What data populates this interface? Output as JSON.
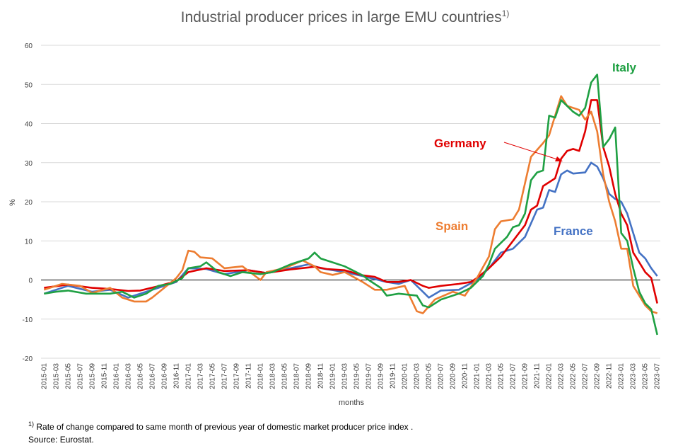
{
  "page": {
    "title_main": "Industrial producer prices in large EMU countries",
    "title_sup": "1)",
    "footnote_marker": "1)",
    "footnote_text": "Rate of change compared to same month of previous year of domestic market producer price index .",
    "source": "Source: Eurostat."
  },
  "chart_data": {
    "type": "line",
    "title": "Industrial producer prices in large EMU countries",
    "xlabel": "months",
    "ylabel": "%",
    "ylim": [
      -20,
      60
    ],
    "yticks": [
      -20,
      -10,
      0,
      10,
      20,
      30,
      40,
      50,
      60
    ],
    "grid": "horizontal",
    "legend": "inline labels",
    "x_start": "2015-01",
    "x_end": "2023-07",
    "xtick_labels": [
      "2015-01",
      "2015-03",
      "2015-05",
      "2015-07",
      "2015-09",
      "2015-11",
      "2016-01",
      "2016-03",
      "2016-05",
      "2016-07",
      "2016-09",
      "2016-11",
      "2017-01",
      "2017-03",
      "2017-05",
      "2017-07",
      "2017-09",
      "2017-11",
      "2018-01",
      "2018-03",
      "2018-05",
      "2018-07",
      "2018-09",
      "2018-11",
      "2019-01",
      "2019-03",
      "2019-05",
      "2019-07",
      "2019-09",
      "2019-11",
      "2020-01",
      "2020-03",
      "2020-05",
      "2020-07",
      "2020-09",
      "2020-11",
      "2021-01",
      "2021-03",
      "2021-05",
      "2021-07",
      "2021-09",
      "2021-11",
      "2022-01",
      "2022-03",
      "2022-05",
      "2022-07",
      "2022-09",
      "2022-11",
      "2023-01",
      "2023-03",
      "2023-05",
      "2023-07"
    ],
    "series": [
      {
        "name": "France",
        "color": "#4472C4",
        "points": [
          [
            "2015-01",
            -3.5
          ],
          [
            "2015-05",
            -1.5
          ],
          [
            "2015-09",
            -3
          ],
          [
            "2015-12",
            -2.5
          ],
          [
            "2016-03",
            -4.5
          ],
          [
            "2016-06",
            -3
          ],
          [
            "2016-08",
            -2
          ],
          [
            "2016-11",
            -0.5
          ],
          [
            "2017-01",
            3
          ],
          [
            "2017-04",
            2.8
          ],
          [
            "2017-07",
            1.5
          ],
          [
            "2017-11",
            2.5
          ],
          [
            "2018-02",
            1.8
          ],
          [
            "2018-06",
            3
          ],
          [
            "2018-09",
            4
          ],
          [
            "2018-11",
            3
          ],
          [
            "2019-03",
            2
          ],
          [
            "2019-06",
            1
          ],
          [
            "2019-10",
            -0.5
          ],
          [
            "2019-12",
            -1
          ],
          [
            "2020-02",
            0
          ],
          [
            "2020-04",
            -3
          ],
          [
            "2020-05",
            -4.5
          ],
          [
            "2020-07",
            -2.7
          ],
          [
            "2020-10",
            -2.5
          ],
          [
            "2021-01",
            0
          ],
          [
            "2021-03",
            3
          ],
          [
            "2021-05",
            7
          ],
          [
            "2021-07",
            8
          ],
          [
            "2021-09",
            11
          ],
          [
            "2021-11",
            18
          ],
          [
            "2021-12",
            18.5
          ],
          [
            "2022-01",
            23
          ],
          [
            "2022-02",
            22.5
          ],
          [
            "2022-03",
            27
          ],
          [
            "2022-04",
            28
          ],
          [
            "2022-05",
            27.2
          ],
          [
            "2022-07",
            27.5
          ],
          [
            "2022-08",
            30
          ],
          [
            "2022-09",
            29
          ],
          [
            "2022-10",
            26
          ],
          [
            "2022-11",
            22
          ],
          [
            "2022-12",
            20.7
          ],
          [
            "2023-01",
            20
          ],
          [
            "2023-02",
            17
          ],
          [
            "2023-03",
            12
          ],
          [
            "2023-04",
            7
          ],
          [
            "2023-05",
            5.5
          ],
          [
            "2023-06",
            3
          ],
          [
            "2023-07",
            1
          ]
        ]
      },
      {
        "name": "Germany",
        "color": "#E00000",
        "points": [
          [
            "2015-01",
            -2
          ],
          [
            "2015-05",
            -1.2
          ],
          [
            "2015-09",
            -2
          ],
          [
            "2015-12",
            -2.3
          ],
          [
            "2016-03",
            -2.8
          ],
          [
            "2016-05",
            -2.7
          ],
          [
            "2016-08",
            -1.6
          ],
          [
            "2016-11",
            -0.3
          ],
          [
            "2017-01",
            2
          ],
          [
            "2017-04",
            3
          ],
          [
            "2017-07",
            2.3
          ],
          [
            "2017-11",
            2.5
          ],
          [
            "2018-02",
            1.8
          ],
          [
            "2018-06",
            2.7
          ],
          [
            "2018-09",
            3.2
          ],
          [
            "2018-10",
            3.4
          ],
          [
            "2018-12",
            2.8
          ],
          [
            "2019-03",
            2.5
          ],
          [
            "2019-06",
            1.2
          ],
          [
            "2019-08",
            0.8
          ],
          [
            "2019-10",
            -0.5
          ],
          [
            "2019-12",
            -0.5
          ],
          [
            "2020-02",
            0
          ],
          [
            "2020-04",
            -1.5
          ],
          [
            "2020-05",
            -2
          ],
          [
            "2020-07",
            -1.5
          ],
          [
            "2020-10",
            -1
          ],
          [
            "2020-12",
            -0.5
          ],
          [
            "2021-01",
            0.5
          ],
          [
            "2021-03",
            3
          ],
          [
            "2021-05",
            6
          ],
          [
            "2021-07",
            10
          ],
          [
            "2021-09",
            14
          ],
          [
            "2021-10",
            18
          ],
          [
            "2021-11",
            19
          ],
          [
            "2021-12",
            24
          ],
          [
            "2022-01",
            25
          ],
          [
            "2022-02",
            26
          ],
          [
            "2022-03",
            31
          ],
          [
            "2022-04",
            33
          ],
          [
            "2022-05",
            33.5
          ],
          [
            "2022-06",
            33
          ],
          [
            "2022-07",
            38
          ],
          [
            "2022-08",
            46
          ],
          [
            "2022-09",
            46
          ],
          [
            "2022-10",
            34
          ],
          [
            "2022-11",
            29
          ],
          [
            "2022-12",
            22
          ],
          [
            "2023-01",
            17
          ],
          [
            "2023-02",
            14
          ],
          [
            "2023-03",
            7
          ],
          [
            "2023-04",
            4.5
          ],
          [
            "2023-05",
            2
          ],
          [
            "2023-06",
            0.5
          ],
          [
            "2023-07",
            -6
          ]
        ]
      },
      {
        "name": "Spain",
        "color": "#ED7D31",
        "points": [
          [
            "2015-01",
            -2.5
          ],
          [
            "2015-04",
            -1
          ],
          [
            "2015-07",
            -1.5
          ],
          [
            "2015-09",
            -3.3
          ],
          [
            "2015-12",
            -2
          ],
          [
            "2016-02",
            -4.5
          ],
          [
            "2016-04",
            -5.5
          ],
          [
            "2016-06",
            -5.5
          ],
          [
            "2016-07",
            -4.5
          ],
          [
            "2016-09",
            -2
          ],
          [
            "2016-11",
            0.5
          ],
          [
            "2016-12",
            2.5
          ],
          [
            "2017-01",
            7.5
          ],
          [
            "2017-02",
            7.2
          ],
          [
            "2017-03",
            5.8
          ],
          [
            "2017-05",
            5.5
          ],
          [
            "2017-07",
            3
          ],
          [
            "2017-10",
            3.5
          ],
          [
            "2018-01",
            0
          ],
          [
            "2018-02",
            2
          ],
          [
            "2018-05",
            3
          ],
          [
            "2018-08",
            5
          ],
          [
            "2018-10",
            3.5
          ],
          [
            "2018-11",
            2
          ],
          [
            "2019-01",
            1.3
          ],
          [
            "2019-03",
            2
          ],
          [
            "2019-06",
            -0.5
          ],
          [
            "2019-08",
            -2.5
          ],
          [
            "2019-10",
            -2.5
          ],
          [
            "2020-01",
            -1.5
          ],
          [
            "2020-03",
            -8
          ],
          [
            "2020-04",
            -8.5
          ],
          [
            "2020-06",
            -5
          ],
          [
            "2020-09",
            -3
          ],
          [
            "2020-11",
            -4
          ],
          [
            "2021-01",
            0.5
          ],
          [
            "2021-03",
            6
          ],
          [
            "2021-04",
            13
          ],
          [
            "2021-05",
            15
          ],
          [
            "2021-07",
            15.5
          ],
          [
            "2021-08",
            18
          ],
          [
            "2021-10",
            31.5
          ],
          [
            "2021-12",
            35
          ],
          [
            "2022-01",
            37
          ],
          [
            "2022-03",
            47
          ],
          [
            "2022-04",
            44.5
          ],
          [
            "2022-06",
            43.5
          ],
          [
            "2022-07",
            41
          ],
          [
            "2022-08",
            43
          ],
          [
            "2022-09",
            38
          ],
          [
            "2022-10",
            27
          ],
          [
            "2022-11",
            20
          ],
          [
            "2022-12",
            15
          ],
          [
            "2023-01",
            8
          ],
          [
            "2023-02",
            8
          ],
          [
            "2023-03",
            -1.5
          ],
          [
            "2023-05",
            -6.5
          ],
          [
            "2023-06",
            -8
          ],
          [
            "2023-07",
            -8.5
          ]
        ]
      },
      {
        "name": "Italy",
        "color": "#1FA043",
        "points": [
          [
            "2015-01",
            -3.5
          ],
          [
            "2015-03",
            -3
          ],
          [
            "2015-05",
            -2.7
          ],
          [
            "2015-08",
            -3.5
          ],
          [
            "2015-10",
            -3.5
          ],
          [
            "2015-12",
            -3.5
          ],
          [
            "2016-02",
            -3
          ],
          [
            "2016-04",
            -4.5
          ],
          [
            "2016-06",
            -3.5
          ],
          [
            "2016-08",
            -1.5
          ],
          [
            "2016-10",
            -1
          ],
          [
            "2016-12",
            0.5
          ],
          [
            "2017-01",
            3
          ],
          [
            "2017-03",
            3.5
          ],
          [
            "2017-04",
            4.5
          ],
          [
            "2017-06",
            2
          ],
          [
            "2017-08",
            1
          ],
          [
            "2017-10",
            2
          ],
          [
            "2018-01",
            1.5
          ],
          [
            "2018-03",
            2
          ],
          [
            "2018-06",
            4
          ],
          [
            "2018-09",
            5.5
          ],
          [
            "2018-10",
            7
          ],
          [
            "2018-11",
            5.5
          ],
          [
            "2019-01",
            4.5
          ],
          [
            "2019-03",
            3.5
          ],
          [
            "2019-06",
            1.2
          ],
          [
            "2019-07",
            0
          ],
          [
            "2019-09",
            -2
          ],
          [
            "2019-10",
            -4
          ],
          [
            "2019-12",
            -3.5
          ],
          [
            "2020-03",
            -4
          ],
          [
            "2020-04",
            -6.5
          ],
          [
            "2020-05",
            -7
          ],
          [
            "2020-07",
            -5
          ],
          [
            "2020-10",
            -3.5
          ],
          [
            "2020-12",
            -2
          ],
          [
            "2021-02",
            1
          ],
          [
            "2021-03",
            4
          ],
          [
            "2021-04",
            8
          ],
          [
            "2021-06",
            11
          ],
          [
            "2021-07",
            13.5
          ],
          [
            "2021-08",
            14
          ],
          [
            "2021-09",
            17
          ],
          [
            "2021-10",
            25.5
          ],
          [
            "2021-11",
            27.5
          ],
          [
            "2021-12",
            28
          ],
          [
            "2022-01",
            42
          ],
          [
            "2022-02",
            41.5
          ],
          [
            "2022-03",
            46
          ],
          [
            "2022-05",
            43
          ],
          [
            "2022-06",
            42
          ],
          [
            "2022-07",
            44
          ],
          [
            "2022-08",
            50.5
          ],
          [
            "2022-09",
            52.5
          ],
          [
            "2022-10",
            34
          ],
          [
            "2022-11",
            36
          ],
          [
            "2022-12",
            39
          ],
          [
            "2023-01",
            12
          ],
          [
            "2023-02",
            10
          ],
          [
            "2023-03",
            3
          ],
          [
            "2023-04",
            -3
          ],
          [
            "2023-05",
            -6
          ],
          [
            "2023-06",
            -7.5
          ],
          [
            "2023-07",
            -14
          ]
        ]
      }
    ]
  }
}
